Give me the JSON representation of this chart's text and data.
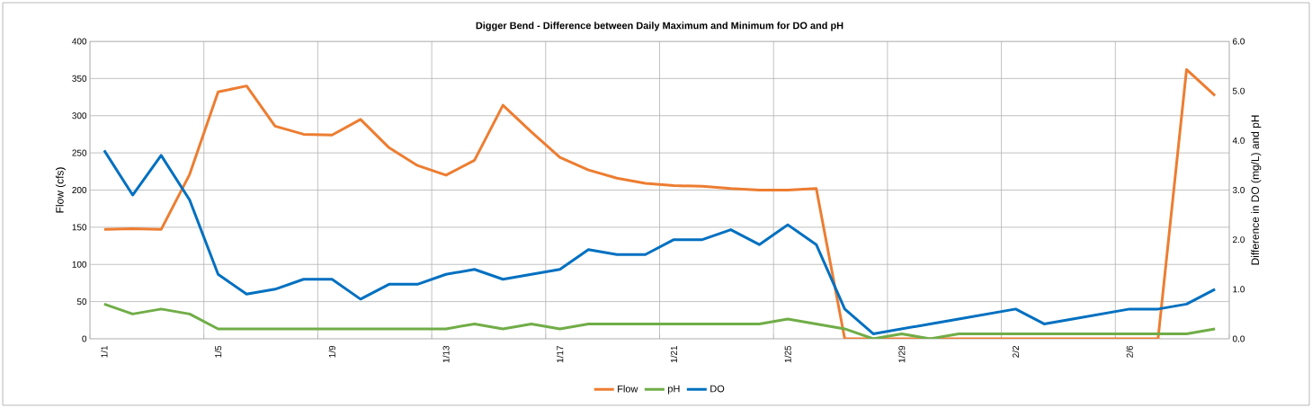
{
  "chart_data": {
    "type": "line",
    "title": "Digger Bend - Difference between Daily Maximum and Minimum for DO and pH",
    "ylabel": "Flow (cfs)",
    "y2label": "Difference in DO (mg/L) and pH",
    "categories": [
      "1/1",
      null,
      null,
      null,
      "1/5",
      null,
      null,
      null,
      "1/9",
      null,
      null,
      null,
      "1/13",
      null,
      null,
      null,
      "1/17",
      null,
      null,
      null,
      "1/21",
      null,
      null,
      null,
      "1/25",
      null,
      null,
      null,
      "1/29",
      null,
      null,
      null,
      "2/2",
      null,
      null,
      null,
      "2/6",
      null,
      null,
      null
    ],
    "series": [
      {
        "name": "Flow",
        "color": "#ed7d31",
        "values": [
          147,
          148,
          147,
          221,
          332,
          340,
          286,
          275,
          274,
          295,
          257,
          233,
          220,
          240,
          314,
          278,
          244,
          227,
          216,
          209,
          206,
          205,
          202,
          200,
          200,
          202,
          0,
          0,
          0,
          0,
          0,
          0,
          0,
          0,
          0,
          0,
          0,
          0,
          362,
          327
        ]
      },
      {
        "name": "pH",
        "color": "#70ad47",
        "axis": "y2",
        "values": [
          0.7,
          0.5,
          0.6,
          0.5,
          0.2,
          0.2,
          0.2,
          0.2,
          0.2,
          0.2,
          0.2,
          0.2,
          0.2,
          0.3,
          0.2,
          0.3,
          0.2,
          0.3,
          0.3,
          0.3,
          0.3,
          0.3,
          0.3,
          0.3,
          0.4,
          0.3,
          0.2,
          0.0,
          0.1,
          0.0,
          0.1,
          0.1,
          0.1,
          0.1,
          0.1,
          0.1,
          0.1,
          0.1,
          0.1,
          0.2
        ]
      },
      {
        "name": "DO",
        "color": "#0070c0",
        "axis": "y2",
        "values": [
          3.8,
          2.9,
          3.7,
          2.8,
          1.3,
          0.9,
          1.0,
          1.2,
          1.2,
          0.8,
          1.1,
          1.1,
          1.3,
          1.4,
          1.2,
          1.3,
          1.4,
          1.8,
          1.7,
          1.7,
          2.0,
          2.0,
          2.2,
          1.9,
          2.3,
          1.9,
          0.6,
          0.1,
          0.2,
          0.3,
          0.4,
          0.5,
          0.6,
          0.3,
          0.4,
          0.5,
          0.6,
          0.6,
          0.7,
          1.0
        ]
      }
    ],
    "ylim": [
      0,
      400
    ],
    "yticks": [
      0,
      50,
      100,
      150,
      200,
      250,
      300,
      350,
      400
    ],
    "y2lim": [
      0,
      6
    ],
    "y2ticks": [
      {
        "value": 0,
        "label": "0.0"
      },
      {
        "value": 1,
        "label": "1.0"
      },
      {
        "value": 2,
        "label": "2.0"
      },
      {
        "value": 3,
        "label": "3.0"
      },
      {
        "value": 4,
        "label": "4.0"
      },
      {
        "value": 5,
        "label": "5.0"
      },
      {
        "value": 6,
        "label": "6.0"
      }
    ],
    "grid": true,
    "legend": "bottom",
    "marker": "none",
    "line_style": "solid"
  }
}
